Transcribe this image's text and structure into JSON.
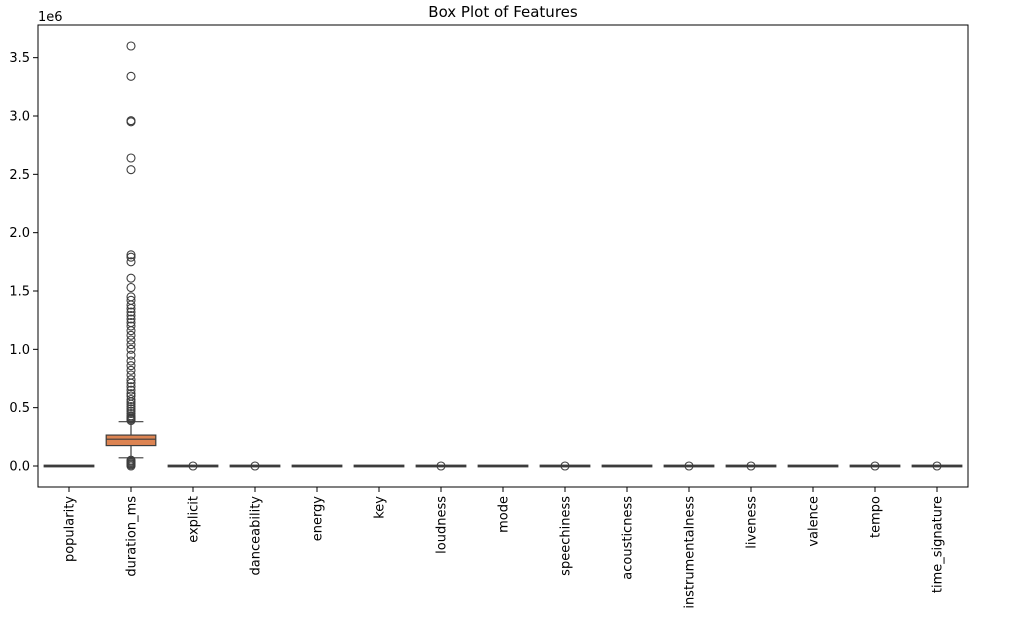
{
  "chart_data": {
    "type": "box",
    "title": "Box Plot of Features",
    "xlabel": "",
    "ylabel": "",
    "y_multiplier_label": "1e6",
    "ylim": [
      -0.18,
      3.78
    ],
    "yticks": [
      0.0,
      0.5,
      1.0,
      1.5,
      2.0,
      2.5,
      3.0,
      3.5
    ],
    "ytick_labels": [
      "0.0",
      "0.5",
      "1.0",
      "1.5",
      "2.0",
      "2.5",
      "3.0",
      "3.5"
    ],
    "grid": false,
    "categories": [
      "popularity",
      "duration_ms",
      "explicit",
      "danceability",
      "energy",
      "key",
      "loudness",
      "mode",
      "speechiness",
      "acousticness",
      "instrumentalness",
      "liveness",
      "valence",
      "tempo",
      "time_signature"
    ],
    "boxes": [
      {
        "category": "popularity",
        "q1": 0.0,
        "median": 0.0,
        "q3": 0.0,
        "whisker_low": 0.0,
        "whisker_high": 0.0,
        "outliers": [],
        "color": "#4c72b0"
      },
      {
        "category": "duration_ms",
        "q1": 0.175,
        "median": 0.23,
        "q3": 0.265,
        "whisker_low": 0.07,
        "whisker_high": 0.38,
        "outliers": [
          0.0,
          0.01,
          0.02,
          0.03,
          0.04,
          0.05,
          0.39,
          0.4,
          0.41,
          0.42,
          0.43,
          0.45,
          0.47,
          0.49,
          0.51,
          0.53,
          0.55,
          0.57,
          0.6,
          0.62,
          0.65,
          0.68,
          0.71,
          0.74,
          0.78,
          0.82,
          0.86,
          0.9,
          0.95,
          1.0,
          1.04,
          1.08,
          1.12,
          1.16,
          1.2,
          1.23,
          1.26,
          1.29,
          1.32,
          1.35,
          1.38,
          1.42,
          1.45,
          1.53,
          1.61,
          1.75,
          1.79,
          1.81,
          2.54,
          2.64,
          2.95,
          2.96,
          3.34,
          3.6
        ],
        "color": "#dd8452"
      },
      {
        "category": "explicit",
        "q1": 0.0,
        "median": 0.0,
        "q3": 0.0,
        "whisker_low": 0.0,
        "whisker_high": 0.0,
        "outliers": [
          0.0
        ],
        "color": "#55a868"
      },
      {
        "category": "danceability",
        "q1": 0.0,
        "median": 0.0,
        "q3": 0.0,
        "whisker_low": 0.0,
        "whisker_high": 0.0,
        "outliers": [
          0.0
        ],
        "color": "#c44e52"
      },
      {
        "category": "energy",
        "q1": 0.0,
        "median": 0.0,
        "q3": 0.0,
        "whisker_low": 0.0,
        "whisker_high": 0.0,
        "outliers": [],
        "color": "#8172b3"
      },
      {
        "category": "key",
        "q1": 0.0,
        "median": 0.0,
        "q3": 0.0,
        "whisker_low": 0.0,
        "whisker_high": 0.0,
        "outliers": [],
        "color": "#937860"
      },
      {
        "category": "loudness",
        "q1": 0.0,
        "median": 0.0,
        "q3": 0.0,
        "whisker_low": 0.0,
        "whisker_high": 0.0,
        "outliers": [
          0.0
        ],
        "color": "#da8bc3"
      },
      {
        "category": "mode",
        "q1": 0.0,
        "median": 0.0,
        "q3": 0.0,
        "whisker_low": 0.0,
        "whisker_high": 0.0,
        "outliers": [],
        "color": "#8c8c8c"
      },
      {
        "category": "speechiness",
        "q1": 0.0,
        "median": 0.0,
        "q3": 0.0,
        "whisker_low": 0.0,
        "whisker_high": 0.0,
        "outliers": [
          0.0
        ],
        "color": "#ccb974"
      },
      {
        "category": "acousticness",
        "q1": 0.0,
        "median": 0.0,
        "q3": 0.0,
        "whisker_low": 0.0,
        "whisker_high": 0.0,
        "outliers": [],
        "color": "#64b5cd"
      },
      {
        "category": "instrumentalness",
        "q1": 0.0,
        "median": 0.0,
        "q3": 0.0,
        "whisker_low": 0.0,
        "whisker_high": 0.0,
        "outliers": [
          0.0
        ],
        "color": "#4c72b0"
      },
      {
        "category": "liveness",
        "q1": 0.0,
        "median": 0.0,
        "q3": 0.0,
        "whisker_low": 0.0,
        "whisker_high": 0.0,
        "outliers": [
          0.0
        ],
        "color": "#dd8452"
      },
      {
        "category": "valence",
        "q1": 0.0,
        "median": 0.0,
        "q3": 0.0,
        "whisker_low": 0.0,
        "whisker_high": 0.0,
        "outliers": [],
        "color": "#55a868"
      },
      {
        "category": "tempo",
        "q1": 0.0,
        "median": 0.0,
        "q3": 0.0,
        "whisker_low": 0.0,
        "whisker_high": 0.0,
        "outliers": [
          0.0
        ],
        "color": "#c44e52"
      },
      {
        "category": "time_signature",
        "q1": 0.0,
        "median": 0.0,
        "q3": 0.0,
        "whisker_low": 0.0,
        "whisker_high": 0.0,
        "outliers": [
          0.0
        ],
        "color": "#8172b3"
      }
    ]
  }
}
